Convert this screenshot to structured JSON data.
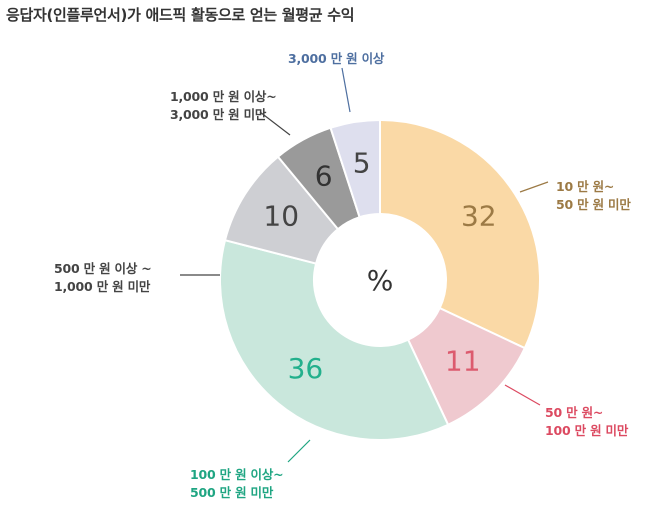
{
  "title": "응답자(인플루언서)가 애드픽 활동으로 얻는 월평균 수익",
  "chart_data": {
    "type": "pie",
    "title": "응답자(인플루언서)가 애드픽 활동으로 얻는 월평균 수익",
    "center_label": "%",
    "unit": "%",
    "slices": [
      {
        "id": "s1",
        "value": 32,
        "label_lines": [
          "10 만 원~",
          "50 만 원 미만"
        ],
        "color": "#FAD9A6",
        "text_color": "#9C7A45",
        "label_color": "#9C7A45"
      },
      {
        "id": "s2",
        "value": 11,
        "label_lines": [
          "50 만 원~",
          "100 만 원 미만"
        ],
        "color": "#EFC9CF",
        "text_color": "#DC5A6E",
        "label_color": "#DC4A61"
      },
      {
        "id": "s3",
        "value": 36,
        "label_lines": [
          "100 만 원 이상~",
          "500 만 원 미만"
        ],
        "color": "#C9E7DC",
        "text_color": "#22B08C",
        "label_color": "#1FA582"
      },
      {
        "id": "s4",
        "value": 10,
        "label_lines": [
          "500 만 원 이상 ~",
          "1,000 만 원 미만"
        ],
        "color": "#CECFD3",
        "text_color": "#444444",
        "label_color": "#444444"
      },
      {
        "id": "s5",
        "value": 6,
        "label_lines": [
          "1,000 만 원 이상~",
          "3,000 만 원 미만"
        ],
        "color": "#9A9A9A",
        "text_color": "#333333",
        "label_color": "#444444"
      },
      {
        "id": "s6",
        "value": 5,
        "label_lines": [
          "3,000 만 원 이상"
        ],
        "color": "#DEDFEE",
        "text_color": "#444444",
        "label_color": "#4E6FA0"
      }
    ]
  }
}
